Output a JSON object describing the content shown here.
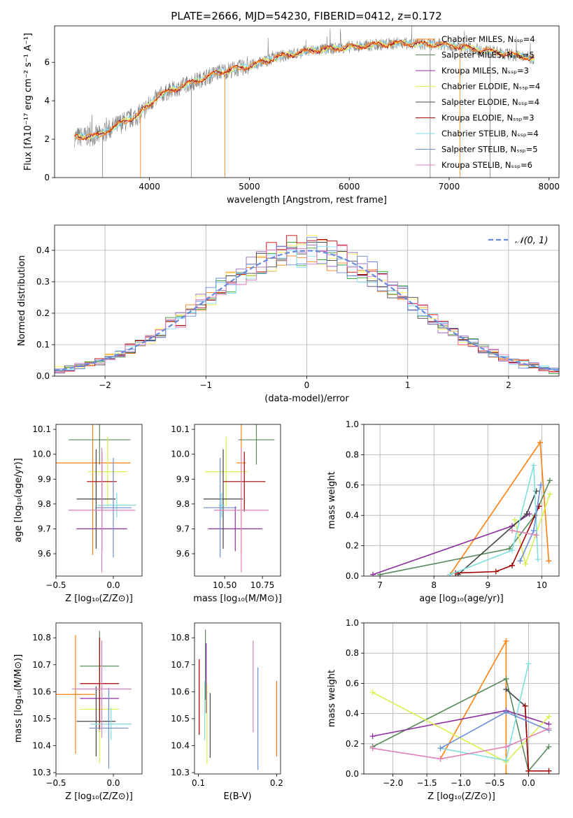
{
  "figure_title": "PLATE=2666, MJD=54230, FIBERID=0412, z=0.172",
  "colors": {
    "spectrum": "#808080",
    "grid": "#b0b0b0",
    "series": [
      "#ff7f0e",
      "#2ca02c",
      "#9467bd",
      "#ffee55",
      "#444444",
      "#c00000",
      "#7fe0ff",
      "#6688dd",
      "#e377c2"
    ],
    "track": [
      "#ff7f0e",
      "#5a8a5a",
      "#8c2fa0",
      "#d8f050",
      "#444444",
      "#a00000",
      "#80dede",
      "#6a8ed8",
      "#e080b8"
    ]
  },
  "chart_data": [
    {
      "type": "line",
      "title": "PLATE=2666, MJD=54230, FIBERID=0412, z=0.172",
      "xlabel": "wavelength [Angstrom, rest frame]",
      "ylabel": "Flux [fλ10⁻¹⁷ erg cm⁻² s⁻¹ A⁻¹]",
      "xlim": [
        3050,
        8100
      ],
      "ylim": [
        0,
        7.9
      ],
      "xticks": [
        "4000",
        "5000",
        "6000",
        "7000",
        "8000"
      ],
      "yticks": [
        "0",
        "2",
        "4",
        "6"
      ],
      "grid": false,
      "legend_position": "top-right",
      "series": [
        {
          "name": "Chabrier MILES, Nₛₛₚ=4"
        },
        {
          "name": "Salpeter MILES, Nₛₛₚ=5"
        },
        {
          "name": "Kroupa MILES, Nₛₛₚ=3"
        },
        {
          "name": "Chabrier ELODIE, Nₛₛₚ=4"
        },
        {
          "name": "Salpeter ELODIE, Nₛₛₚ=4"
        },
        {
          "name": "Kroupa ELODIE, Nₛₛₚ=3"
        },
        {
          "name": "Chabrier STELIB, Nₛₛₚ=4"
        },
        {
          "name": "Salpeter STELIB, Nₛₛₚ=5"
        },
        {
          "name": "Kroupa STELIB, Nₛₛₚ=6"
        }
      ],
      "continuum": {
        "x": [
          3250,
          3500,
          3700,
          3900,
          4100,
          4300,
          4500,
          4700,
          5000,
          5300,
          5600,
          6000,
          6500,
          7000,
          7500,
          7850
        ],
        "y": [
          2.1,
          2.2,
          2.8,
          3.3,
          4.3,
          4.7,
          5.1,
          5.5,
          5.8,
          6.3,
          6.6,
          6.8,
          7.0,
          6.9,
          6.5,
          6.2
        ]
      }
    },
    {
      "type": "histogram",
      "xlabel": "(data-model)/error",
      "ylabel": "Normed distribution",
      "xlim": [
        -2.5,
        2.5
      ],
      "ylim": [
        0,
        0.48
      ],
      "xticks": [
        "−2",
        "−1",
        "0",
        "1",
        "2"
      ],
      "yticks": [
        "0.0",
        "0.1",
        "0.2",
        "0.3",
        "0.4"
      ],
      "grid": true,
      "legend_position": "top-right",
      "legend": "𝒩(0, 1)",
      "bin_width": 0.1,
      "reference_curve": "normal(0,1)"
    },
    {
      "type": "errorbar",
      "xlabel": "Z [log₁₀(Z/Z⊙)]",
      "ylabel": "age  [log₁₀(age/yr)]",
      "xlim": [
        -0.5,
        0.25
      ],
      "ylim": [
        9.51,
        10.12
      ],
      "xticks": [
        "−0.5",
        "0.0"
      ],
      "yticks": [
        "9.6",
        "9.7",
        "9.8",
        "9.9",
        "10.0",
        "10.1"
      ],
      "points": [
        {
          "x": -0.18,
          "y": 9.965,
          "xerr": 0.33,
          "yerr": 0.37
        },
        {
          "x": -0.12,
          "y": 10.058,
          "xerr": 0.27,
          "yerr": 0.1
        },
        {
          "x": -0.1,
          "y": 9.7,
          "xerr": 0.22,
          "yerr": 0.09
        },
        {
          "x": -0.05,
          "y": 9.93,
          "xerr": 0.17,
          "yerr": 0.14
        },
        {
          "x": -0.15,
          "y": 9.82,
          "xerr": 0.17,
          "yerr": 0.2
        },
        {
          "x": -0.1,
          "y": 9.89,
          "xerr": 0.13,
          "yerr": 0.12
        },
        {
          "x": 0.03,
          "y": 9.795,
          "xerr": 0.17,
          "yerr": 0.05
        },
        {
          "x": 0.0,
          "y": 9.785,
          "xerr": 0.16,
          "yerr": 0.2
        },
        {
          "x": -0.1,
          "y": 9.775,
          "xerr": 0.29,
          "yerr": 0.25
        }
      ]
    },
    {
      "type": "errorbar",
      "xlabel": "mass [log₁₀(M/M⊙)]",
      "xlim": [
        10.3,
        10.87
      ],
      "ylim": [
        9.51,
        10.12
      ],
      "xticks": [
        "10.50",
        "10.75"
      ],
      "yticks": [
        "9.6",
        "9.7",
        "9.8",
        "9.9",
        "10.0",
        "10.1"
      ],
      "points": [
        {
          "x": 10.61,
          "y": 9.965,
          "xerr": 0.03,
          "yerr": 0.37
        },
        {
          "x": 10.71,
          "y": 10.058,
          "xerr": 0.12,
          "yerr": 0.1
        },
        {
          "x": 10.57,
          "y": 9.7,
          "xerr": 0.18,
          "yerr": 0.09
        },
        {
          "x": 10.51,
          "y": 9.93,
          "xerr": 0.14,
          "yerr": 0.14
        },
        {
          "x": 10.49,
          "y": 9.82,
          "xerr": 0.13,
          "yerr": 0.2
        },
        {
          "x": 10.63,
          "y": 9.89,
          "xerr": 0.14,
          "yerr": 0.12
        },
        {
          "x": 10.48,
          "y": 9.795,
          "xerr": 0.02,
          "yerr": 0.05
        },
        {
          "x": 10.47,
          "y": 9.785,
          "xerr": 0.11,
          "yerr": 0.2
        },
        {
          "x": 10.61,
          "y": 9.775,
          "xerr": 0.18,
          "yerr": 0.25
        }
      ]
    },
    {
      "type": "line",
      "xlabel": "age  [log₁₀(age/yr)]",
      "ylabel": "mass weight",
      "xlim": [
        6.7,
        10.32
      ],
      "ylim": [
        0,
        1.0
      ],
      "xticks": [
        "7",
        "8",
        "9",
        "10"
      ],
      "yticks": [
        "0.0",
        "0.2",
        "0.4",
        "0.6",
        "0.8",
        "1.0"
      ],
      "grid": true,
      "series": [
        {
          "x": [
            8.3,
            9.97,
            10.13
          ],
          "y": [
            0.01,
            0.88,
            0.1
          ]
        },
        {
          "x": [
            7.0,
            9.4,
            9.87,
            10.15
          ],
          "y": [
            0.01,
            0.18,
            0.4,
            0.63
          ]
        },
        {
          "x": [
            6.87,
            9.45,
            9.77
          ],
          "y": [
            0.01,
            0.33,
            0.41
          ]
        },
        {
          "x": [
            9.5,
            9.7,
            10.15
          ],
          "y": [
            0.37,
            0.08,
            0.54
          ]
        },
        {
          "x": [
            8.45,
            9.72,
            9.9
          ],
          "y": [
            0.01,
            0.41,
            0.56
          ]
        },
        {
          "x": [
            8.4,
            9.15,
            9.45,
            9.95
          ],
          "y": [
            0.02,
            0.03,
            0.07,
            0.46
          ]
        },
        {
          "x": [
            8.3,
            9.45,
            9.85,
            9.93
          ],
          "y": [
            0.01,
            0.17,
            0.73,
            0.11
          ]
        },
        {
          "x": [
            9.6,
            9.85,
            9.98
          ],
          "y": [
            0.1,
            0.3,
            0.6
          ]
        },
        {
          "x": [
            9.45,
            9.9
          ],
          "y": [
            0.3,
            0.27
          ]
        }
      ]
    },
    {
      "type": "errorbar",
      "xlabel": "Z [log₁₀(Z/Z⊙)]",
      "ylabel": "mass [log₁₀(M/M⊙)]",
      "xlim": [
        -0.5,
        0.25
      ],
      "ylim": [
        10.295,
        10.855
      ],
      "xticks": [
        "−0.5",
        "0.0"
      ],
      "yticks": [
        "10.3",
        "10.4",
        "10.5",
        "10.6",
        "10.7",
        "10.8"
      ],
      "points": [
        {
          "x": -0.33,
          "y": 10.59,
          "xerr": 0.17,
          "yerr": 0.22
        },
        {
          "x": -0.12,
          "y": 10.695,
          "xerr": 0.17,
          "yerr": 0.13
        },
        {
          "x": -0.12,
          "y": 10.575,
          "xerr": 0.17,
          "yerr": 0.13
        },
        {
          "x": -0.12,
          "y": 10.535,
          "xerr": 0.17,
          "yerr": 0.2
        },
        {
          "x": -0.15,
          "y": 10.49,
          "xerr": 0.17,
          "yerr": 0.13
        },
        {
          "x": -0.12,
          "y": 10.63,
          "xerr": 0.17,
          "yerr": 0.17
        },
        {
          "x": -0.02,
          "y": 10.48,
          "xerr": 0.18,
          "yerr": 0.06
        },
        {
          "x": -0.04,
          "y": 10.465,
          "xerr": 0.17,
          "yerr": 0.15
        },
        {
          "x": -0.1,
          "y": 10.61,
          "xerr": 0.26,
          "yerr": 0.18
        }
      ]
    },
    {
      "type": "errorbar",
      "xlabel": "E(B-V)",
      "xlim": [
        0.095,
        0.205
      ],
      "ylim": [
        10.295,
        10.855
      ],
      "xticks": [
        "0.1",
        "0.2"
      ],
      "yticks": [
        "10.3",
        "10.4",
        "10.5",
        "10.6",
        "10.7",
        "10.8"
      ],
      "points": [
        {
          "x": 0.2,
          "y": 10.5,
          "xerr": 0,
          "yerr": 0.14
        },
        {
          "x": 0.109,
          "y": 10.7,
          "xerr": 0,
          "yerr": 0.13
        },
        {
          "x": 0.11,
          "y": 10.65,
          "xerr": 0,
          "yerr": 0.13
        },
        {
          "x": 0.111,
          "y": 10.48,
          "xerr": 0,
          "yerr": 0.15
        },
        {
          "x": 0.115,
          "y": 10.475,
          "xerr": 0,
          "yerr": 0.12
        },
        {
          "x": 0.101,
          "y": 10.58,
          "xerr": 0,
          "yerr": 0.14
        },
        {
          "x": 0.108,
          "y": 10.53,
          "xerr": 0,
          "yerr": 0.11
        },
        {
          "x": 0.176,
          "y": 10.5,
          "xerr": 0,
          "yerr": 0.19
        },
        {
          "x": 0.17,
          "y": 10.62,
          "xerr": 0,
          "yerr": 0.17
        }
      ]
    },
    {
      "type": "line",
      "xlabel": "Z [log₁₀(Z/Z⊙)]",
      "ylabel": "mass weight",
      "xlim": [
        -2.43,
        0.45
      ],
      "ylim": [
        0,
        1.0
      ],
      "xticks": [
        "−2.0",
        "−1.5",
        "−1.0",
        "−0.5",
        "0.0"
      ],
      "yticks": [
        "0.0",
        "0.2",
        "0.4",
        "0.6",
        "0.8",
        "1.0"
      ],
      "grid": true,
      "series": [
        {
          "x": [
            -1.3,
            -0.33,
            -0.33
          ],
          "y": [
            0.1,
            0.88,
            0.0
          ]
        },
        {
          "x": [
            -2.3,
            -0.33,
            0.0,
            0.3
          ],
          "y": [
            0.18,
            0.63,
            0.02,
            0.18
          ]
        },
        {
          "x": [
            -2.3,
            -0.33,
            0.3
          ],
          "y": [
            0.25,
            0.42,
            0.33
          ]
        },
        {
          "x": [
            -2.3,
            -0.33,
            0.3
          ],
          "y": [
            0.54,
            0.08,
            0.38
          ]
        },
        {
          "x": [
            -0.33,
            -0.05,
            0.0
          ],
          "y": [
            0.56,
            0.45,
            0.02
          ]
        },
        {
          "x": [
            -0.05,
            0.0,
            0.3
          ],
          "y": [
            0.45,
            0.02,
            0.02
          ]
        },
        {
          "x": [
            -1.3,
            -0.33,
            0.0
          ],
          "y": [
            0.17,
            0.09,
            0.73
          ]
        },
        {
          "x": [
            -1.3,
            -0.33,
            0.3
          ],
          "y": [
            0.17,
            0.41,
            0.29
          ]
        },
        {
          "x": [
            -2.3,
            -1.3,
            -0.33,
            0.3
          ],
          "y": [
            0.17,
            0.1,
            0.18,
            0.3
          ]
        }
      ]
    }
  ]
}
